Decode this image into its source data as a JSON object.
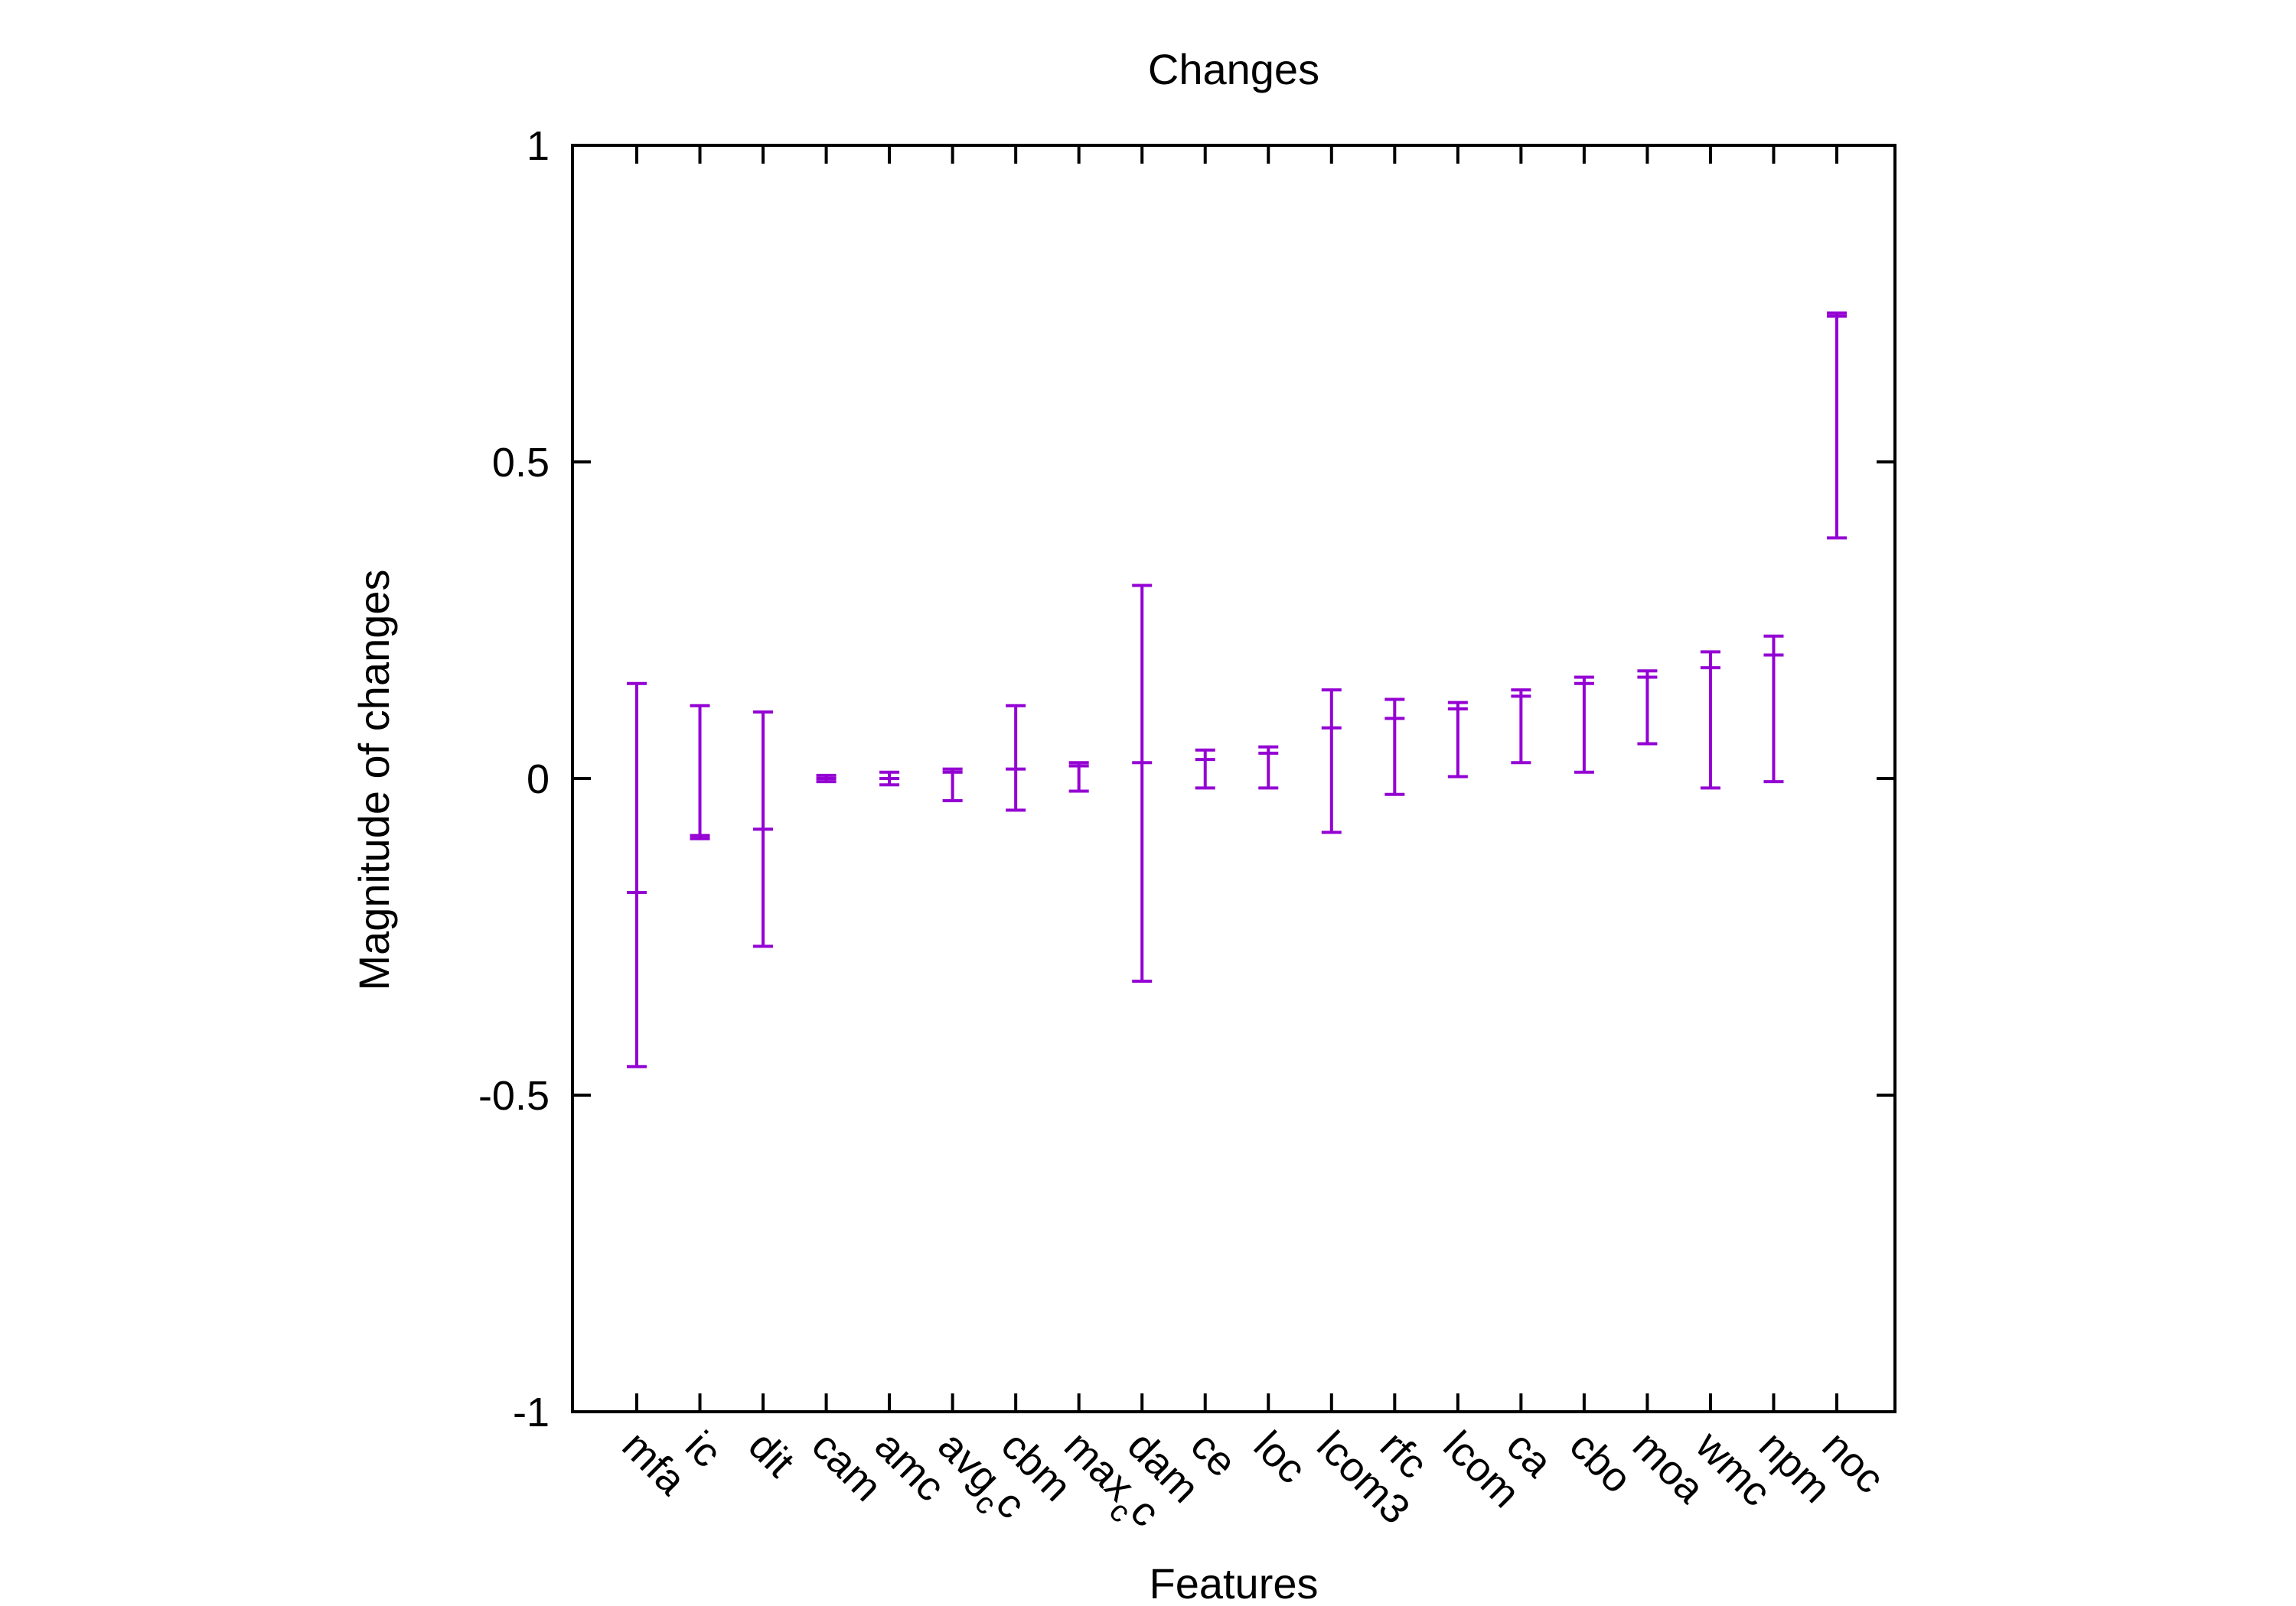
{
  "chart_data": {
    "type": "errorbar",
    "title": "Changes",
    "xlabel": "Features",
    "ylabel": "Magnitude of changes",
    "ylim": [
      -1,
      1
    ],
    "yticks": [
      "-1",
      "-0.5",
      "0",
      "0.5",
      "1"
    ],
    "ytick_values": [
      -1,
      -0.5,
      0,
      0.5,
      1
    ],
    "grid": false,
    "legend": "none",
    "color": "#9400d3",
    "categories": [
      {
        "base": "mfa",
        "sub": ""
      },
      {
        "base": "ic",
        "sub": ""
      },
      {
        "base": "dit",
        "sub": ""
      },
      {
        "base": "cam",
        "sub": ""
      },
      {
        "base": "amc",
        "sub": ""
      },
      {
        "base": "avg",
        "sub": "c",
        "tail": "c"
      },
      {
        "base": "cbm",
        "sub": ""
      },
      {
        "base": "max",
        "sub": "c",
        "tail": "c"
      },
      {
        "base": "dam",
        "sub": ""
      },
      {
        "base": "ce",
        "sub": ""
      },
      {
        "base": "loc",
        "sub": ""
      },
      {
        "base": "lcom3",
        "sub": ""
      },
      {
        "base": "rfc",
        "sub": ""
      },
      {
        "base": "lcom",
        "sub": ""
      },
      {
        "base": "ca",
        "sub": ""
      },
      {
        "base": "cbo",
        "sub": ""
      },
      {
        "base": "moa",
        "sub": ""
      },
      {
        "base": "wmc",
        "sub": ""
      },
      {
        "base": "npm",
        "sub": ""
      },
      {
        "base": "noc",
        "sub": ""
      }
    ],
    "series": [
      {
        "mean": [
          -0.18,
          -0.09,
          -0.08,
          0.0,
          0.0,
          0.01,
          0.015,
          0.02,
          0.025,
          0.03,
          0.04,
          0.08,
          0.095,
          0.11,
          0.13,
          0.15,
          0.16,
          0.175,
          0.195,
          0.73
        ],
        "lower": [
          -0.455,
          -0.095,
          -0.265,
          -0.005,
          -0.01,
          -0.035,
          -0.05,
          -0.02,
          -0.32,
          -0.015,
          -0.015,
          -0.085,
          -0.025,
          0.003,
          0.025,
          0.01,
          0.055,
          -0.015,
          -0.005,
          0.38
        ],
        "upper": [
          0.15,
          0.115,
          0.105,
          0.005,
          0.01,
          0.015,
          0.115,
          0.025,
          0.305,
          0.045,
          0.05,
          0.14,
          0.125,
          0.12,
          0.14,
          0.16,
          0.17,
          0.2,
          0.225,
          0.735
        ]
      }
    ]
  }
}
